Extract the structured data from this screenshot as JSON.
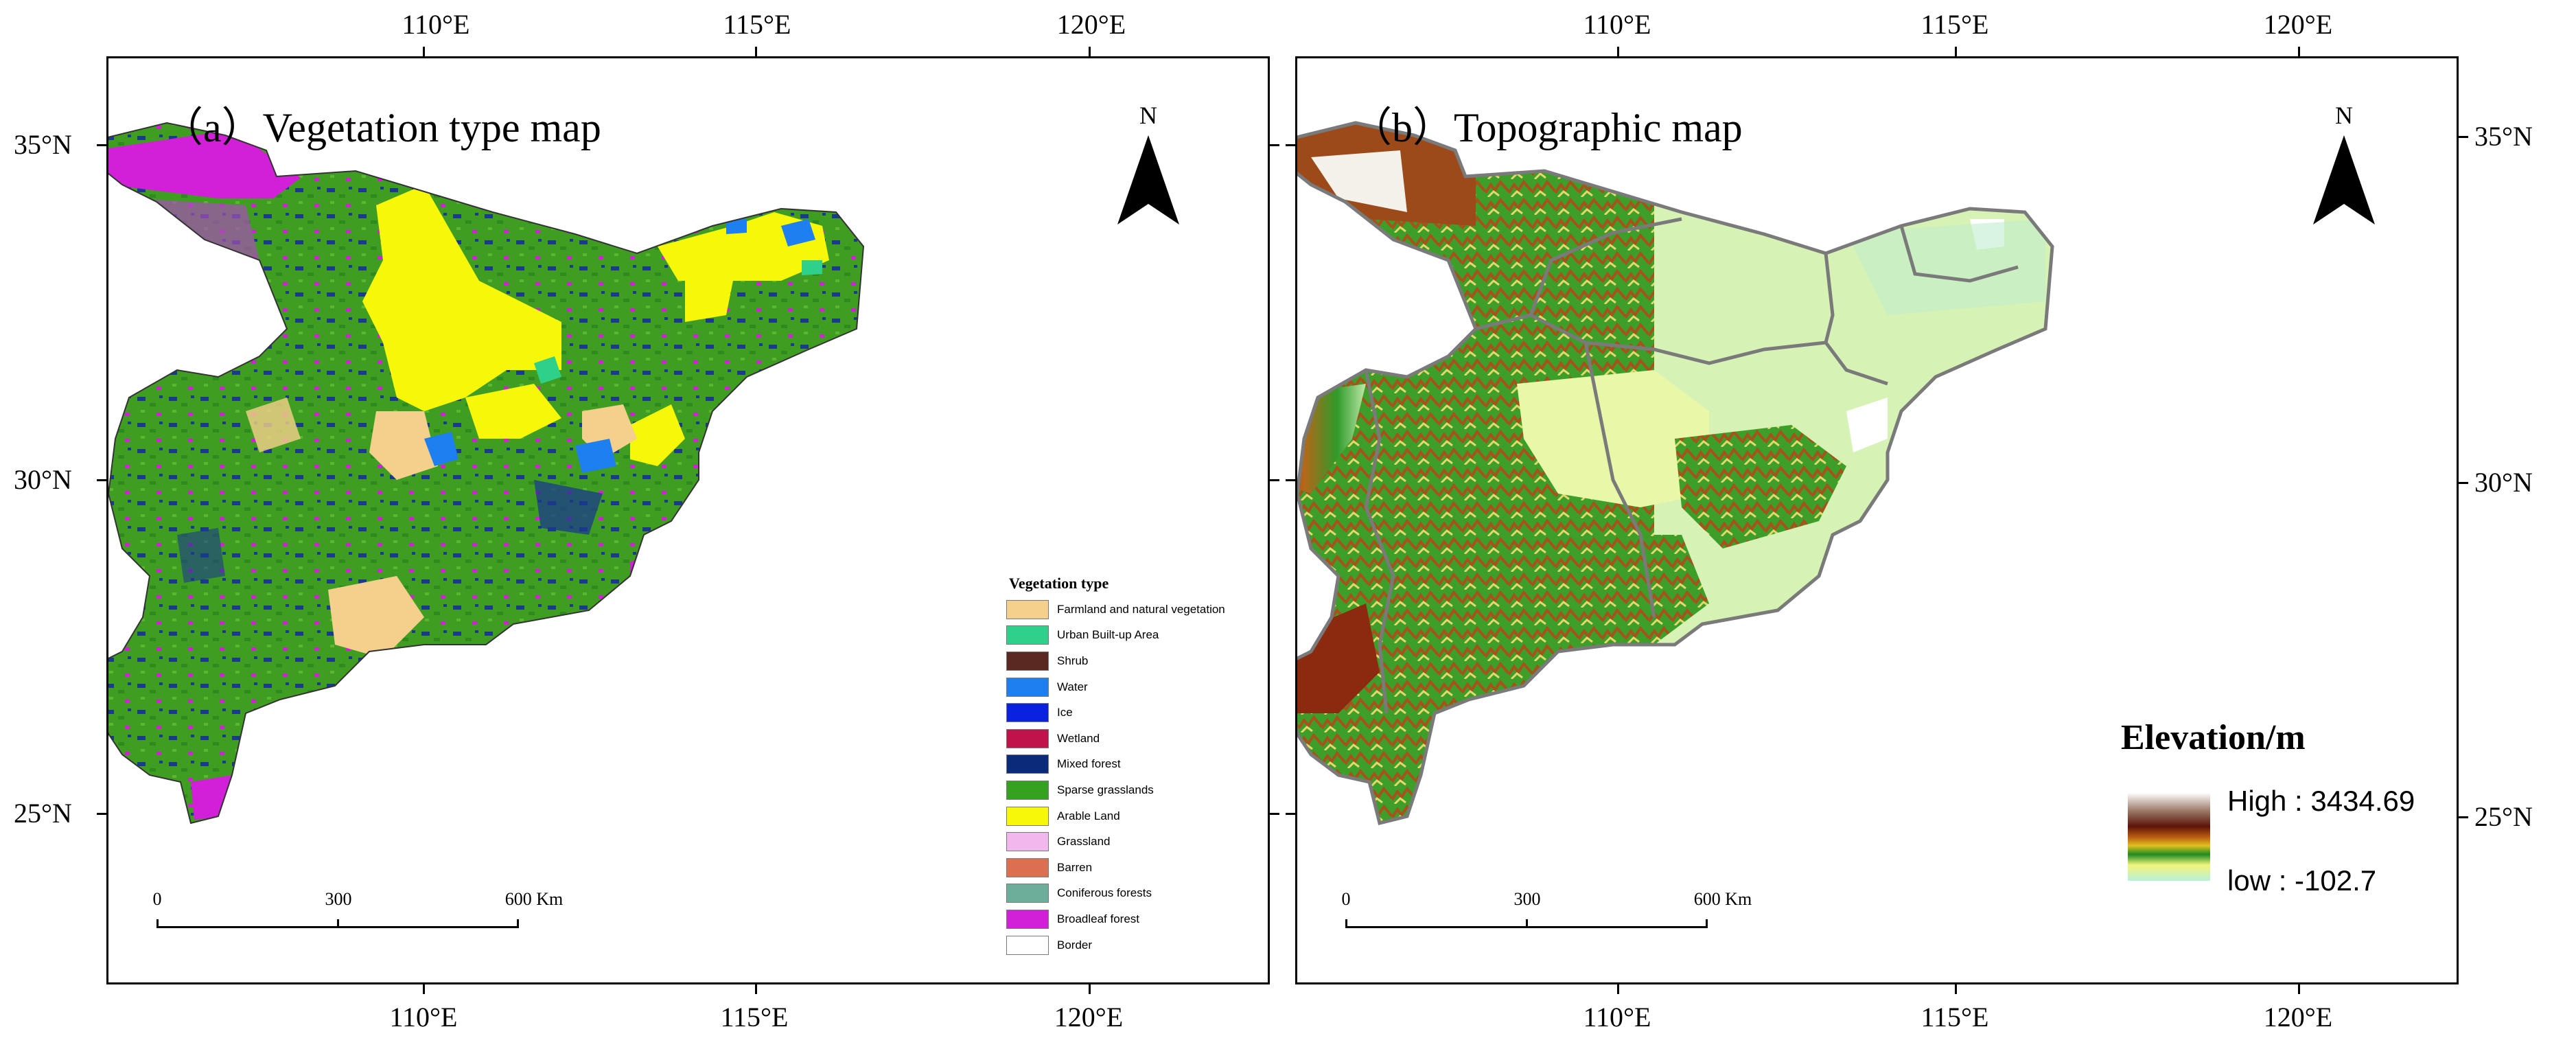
{
  "longitude_labels": [
    "110°E",
    "115°E",
    "120°E"
  ],
  "latitude_labels": [
    "35°N",
    "30°N",
    "25°N"
  ],
  "panel_a": {
    "title": "（a）Vegetation type map",
    "north": "N",
    "scale": {
      "labels": [
        "0",
        "300",
        "600 Km"
      ]
    },
    "legend": {
      "title": "Vegetation type",
      "items": [
        {
          "label": "Farmland and natural vegetation",
          "color": "#f5cf8c"
        },
        {
          "label": "Urban Built-up Area",
          "color": "#2fd08a"
        },
        {
          "label": "Shrub",
          "color": "#5a2a22"
        },
        {
          "label": "Water",
          "color": "#1e7ff0"
        },
        {
          "label": "Ice",
          "color": "#0a22e0"
        },
        {
          "label": "Wetland",
          "color": "#c0134c"
        },
        {
          "label": "Mixed forest",
          "color": "#0a2a7a"
        },
        {
          "label": "Sparse grasslands",
          "color": "#34a21f"
        },
        {
          "label": "Arable Land",
          "color": "#f7f70a"
        },
        {
          "label": "Grassland",
          "color": "#f2b8ee"
        },
        {
          "label": "Barren",
          "color": "#db6f4f"
        },
        {
          "label": "Coniferous forests",
          "color": "#6cae9a"
        },
        {
          "label": "Broadleaf forest",
          "color": "#d21fd8"
        },
        {
          "label": "Border",
          "color": "#ffffff"
        }
      ]
    }
  },
  "panel_b": {
    "title": "（b）Topographic map",
    "north": "N",
    "scale": {
      "labels": [
        "0",
        "300",
        "600 Km"
      ]
    },
    "elevation_legend": {
      "title": "Elevation/m",
      "high": "High : 3434.69",
      "low": "low : -102.7"
    }
  }
}
